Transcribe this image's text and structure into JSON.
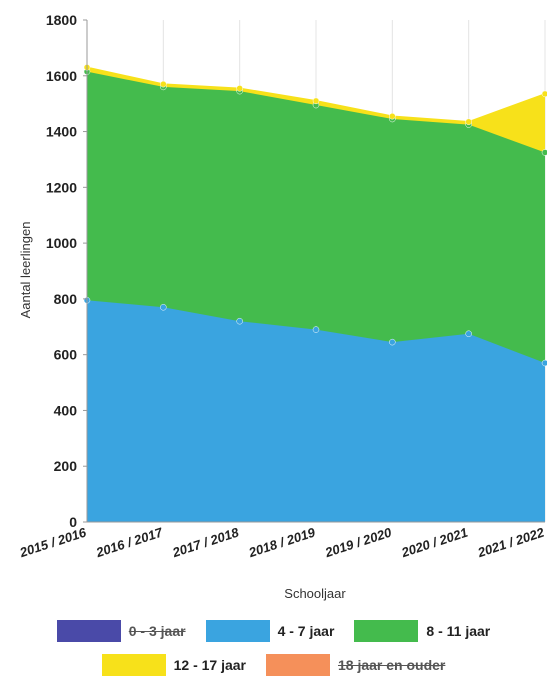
{
  "chart_data": {
    "type": "area",
    "stacked": true,
    "xlabel": "Schooljaar",
    "ylabel": "Aantal leerlingen",
    "ylim": [
      0,
      1800
    ],
    "yticks": [
      0,
      200,
      400,
      600,
      800,
      1000,
      1200,
      1400,
      1600,
      1800
    ],
    "categories": [
      "2015 / 2016",
      "2016 / 2017",
      "2017 / 2018",
      "2018 / 2019",
      "2019 / 2020",
      "2020 / 2021",
      "2021 / 2022"
    ],
    "series": [
      {
        "name": "0 - 3 jaar",
        "values": [
          0,
          0,
          0,
          0,
          0,
          0,
          0
        ],
        "color": "#4a4aa8",
        "hidden": true
      },
      {
        "name": "4 - 7 jaar",
        "values": [
          795,
          770,
          720,
          690,
          645,
          675,
          570
        ],
        "color": "#3aa4e0",
        "hidden": false
      },
      {
        "name": "8 - 11 jaar",
        "values": [
          820,
          790,
          825,
          805,
          800,
          750,
          755
        ],
        "color": "#44bb4d",
        "hidden": false
      },
      {
        "name": "12 - 17 jaar",
        "values": [
          15,
          10,
          10,
          15,
          10,
          10,
          210
        ],
        "color": "#f7e11a",
        "hidden": false
      },
      {
        "name": "18 jaar en ouder",
        "values": [
          0,
          0,
          0,
          0,
          0,
          0,
          0
        ],
        "color": "#f5905a",
        "hidden": true
      }
    ],
    "grid": "vertical",
    "legend_position": "bottom"
  }
}
